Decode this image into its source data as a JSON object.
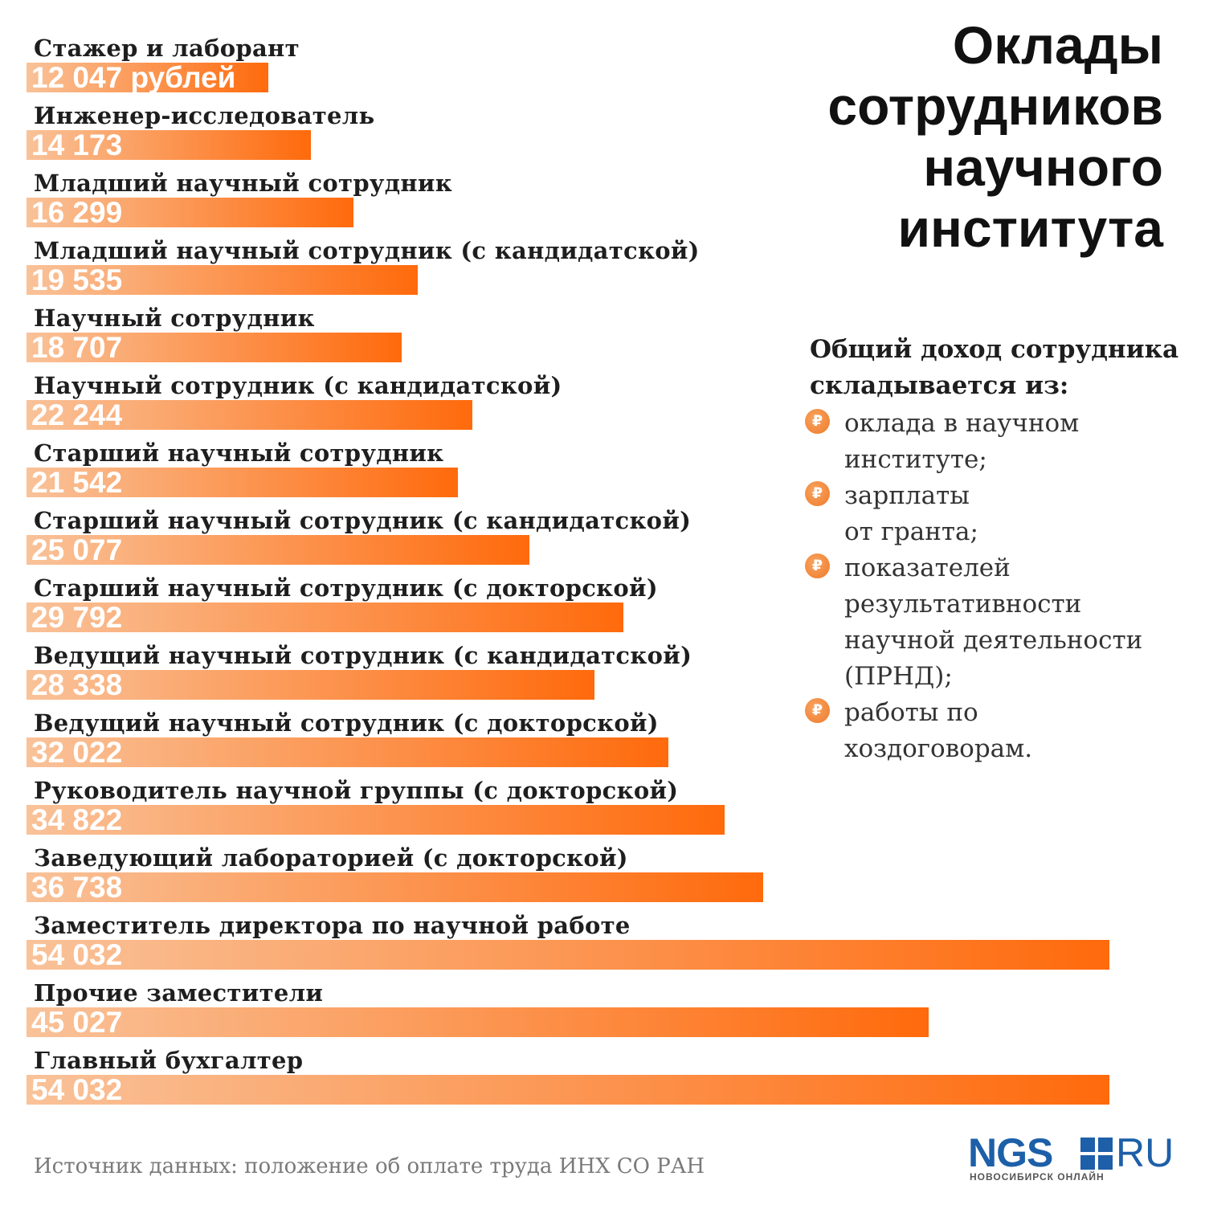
{
  "title": {
    "lines": [
      "Оклады",
      "сотрудников",
      "научного",
      "института"
    ]
  },
  "chart_data": {
    "type": "bar",
    "orientation": "horizontal",
    "title": "Оклады сотрудников научного института",
    "unit": "рублей",
    "categories": [
      "Стажер и лаборант",
      "Инженер-исследователь",
      "Младший научный сотрудник",
      "Младший научный сотрудник (с кандидатской)",
      "Научный сотрудник",
      "Научный сотрудник (с кандидатской)",
      "Старший научный сотрудник",
      "Старший научный сотрудник (с кандидатской)",
      "Старший научный сотрудник (с докторской)",
      "Ведущий научный сотрудник (с кандидатской)",
      "Ведущий научный сотрудник (с докторской)",
      "Руководитель научной группы (с докторской)",
      "Заведующий лабораторией (с докторской)",
      "Заместитель директора по научной работе",
      "Прочие заместители",
      "Главный бухгалтер"
    ],
    "values": [
      12047,
      14173,
      16299,
      19535,
      18707,
      22244,
      21542,
      25077,
      29792,
      28338,
      32022,
      34822,
      36738,
      54032,
      45027,
      54032
    ],
    "value_labels": [
      "12 047 рублей",
      "14 173",
      "16 299",
      "19 535",
      "18 707",
      "22 244",
      "21 542",
      "25 077",
      "29 792",
      "28 338",
      "32 022",
      "34 822",
      "36 738",
      "54 032",
      "45 027",
      "54 032"
    ],
    "xlim": [
      0,
      54032
    ],
    "colors": {
      "bar_start": "#f9c299",
      "bar_end": "#ff6a0c"
    }
  },
  "income": {
    "heading_lines": [
      "Общий доход сотрудника",
      "складывается из:"
    ],
    "items": [
      {
        "lines": [
          "оклада в научном",
          "институте;"
        ]
      },
      {
        "lines": [
          "зарплаты",
          "от гранта;"
        ]
      },
      {
        "lines": [
          "показателей",
          "результативности",
          "научной деятельности",
          "(ПРНД);"
        ]
      },
      {
        "lines": [
          "работы по",
          "хоздоговорам."
        ]
      }
    ],
    "icon": "ruble-icon",
    "icon_glyph": "₽"
  },
  "source": "Источник данных: положение об оплате труда ИНХ СО РАН",
  "logo": {
    "main": "NGS",
    "suffix": "RU",
    "tagline": "НОВОСИБИРСК ОНЛАЙН",
    "color": "#1d5fa8"
  }
}
